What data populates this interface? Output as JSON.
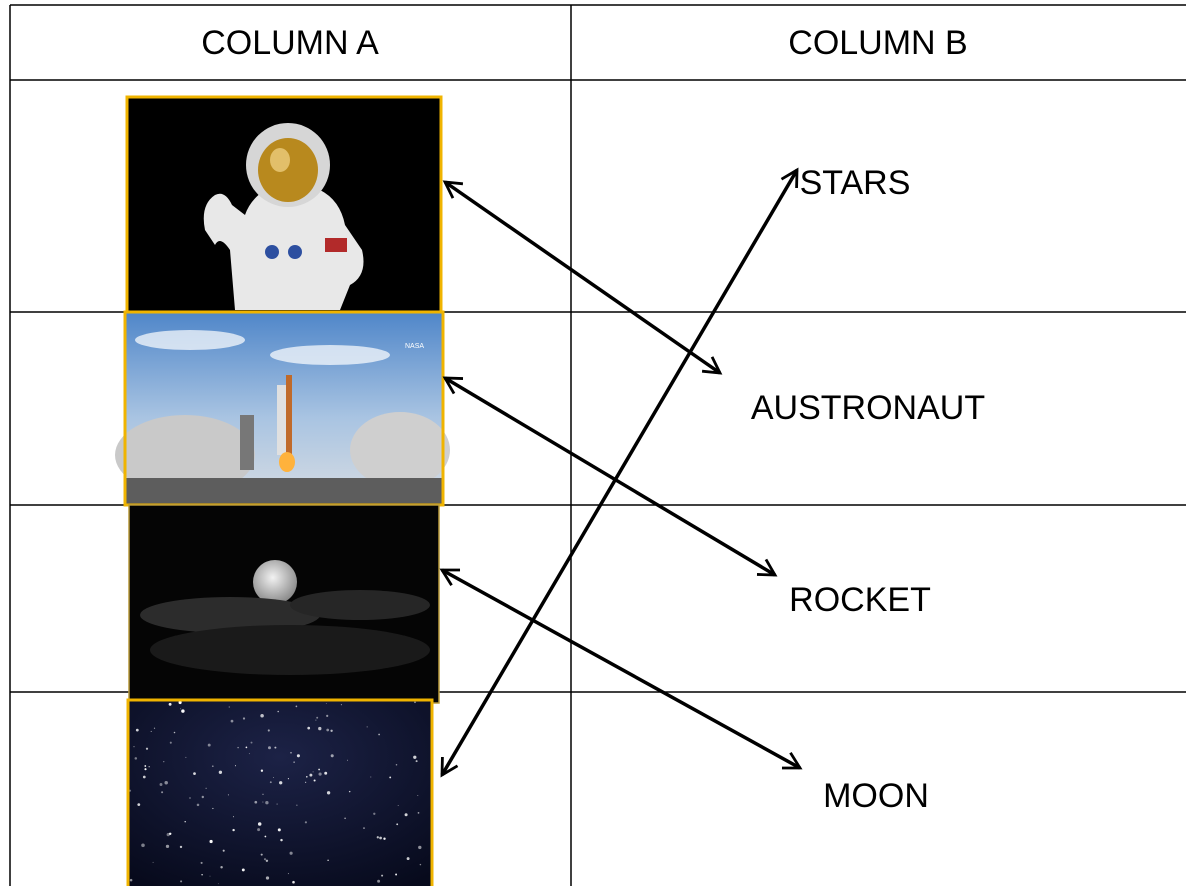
{
  "header": {
    "column_a": "COLUMN A",
    "column_b": "COLUMN B"
  },
  "images": [
    {
      "label": null
    },
    {
      "label": "NASA"
    },
    {
      "label": null
    },
    {
      "label": null
    }
  ],
  "column_b": [
    "STARS",
    "AUSTRONAUT",
    "ROCKET",
    "MOON"
  ]
}
